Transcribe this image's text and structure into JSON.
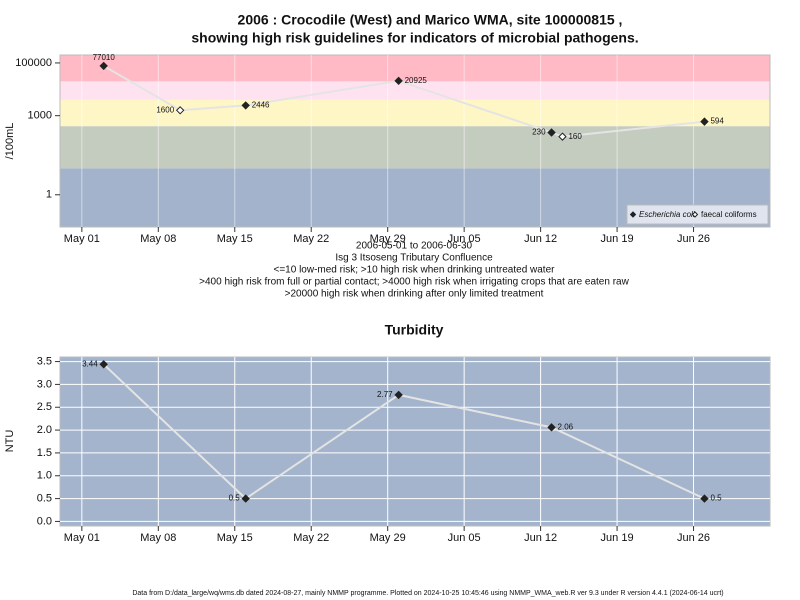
{
  "chart_data": [
    {
      "type": "line",
      "title": [
        "2006 : Crocodile (West) and Marico WMA, site 100000815 ,",
        "showing high risk guidelines for indicators of microbial pathogens."
      ],
      "ylabel": "/100mL",
      "log_y": true,
      "ylim": [
        0.06,
        200000
      ],
      "yticks": [
        1,
        1000,
        100000
      ],
      "xlim": [
        "2006-04-29",
        "2006-07-03"
      ],
      "xticks": [
        {
          "value": "2006-05-01",
          "label": "May 01"
        },
        {
          "value": "2006-05-08",
          "label": "May 08"
        },
        {
          "value": "2006-05-15",
          "label": "May 15"
        },
        {
          "value": "2006-05-22",
          "label": "May 22"
        },
        {
          "value": "2006-05-29",
          "label": "May 29"
        },
        {
          "value": "2006-06-05",
          "label": "Jun 05"
        },
        {
          "value": "2006-06-12",
          "label": "Jun 12"
        },
        {
          "value": "2006-06-19",
          "label": "Jun 19"
        },
        {
          "value": "2006-06-26",
          "label": "Jun 26"
        }
      ],
      "grid": true,
      "bands": {
        "thresholds": [
          10,
          400,
          4000,
          20000
        ],
        "colors": [
          "#a3b3cb",
          "#c4cbbf",
          "#fff6c6",
          "#ffe2f0",
          "#ffbac6"
        ]
      },
      "line_color": "#e4e4e4",
      "series": [
        {
          "name": "Escherichia coli",
          "marker": "filled",
          "color": "#222222",
          "x": [
            "2006-05-03",
            "2006-05-16",
            "2006-05-30",
            "2006-06-13",
            "2006-06-27"
          ],
          "values": [
            77010,
            2446,
            20925,
            230,
            594
          ]
        },
        {
          "name": "faecal coliforms",
          "marker": "open",
          "color": "#222222",
          "x": [
            "2006-05-10",
            "2006-06-14"
          ],
          "values": [
            1600,
            160
          ]
        }
      ],
      "legend": "bottom-right",
      "notes": [
        "2006-05-01 to 2006-06-30",
        "Isg 3 Itsoseng Tributary Confluence",
        "<=10 low-med risk; >10 high risk when drinking untreated water",
        ">400 high risk from full or partial contact; >4000 high risk when irrigating crops that are eaten raw",
        ">20000 high risk when drinking after only limited treatment"
      ]
    },
    {
      "type": "line",
      "title": "Turbidity",
      "ylabel": "NTU",
      "ylim": [
        -0.1,
        3.6
      ],
      "yticks": [
        {
          "value": 0,
          "label": "0.0"
        },
        0.5,
        {
          "value": 1,
          "label": "1.0"
        },
        1.5,
        {
          "value": 2,
          "label": "2.0"
        },
        2.5,
        {
          "value": 3,
          "label": "3.0"
        },
        3.5
      ],
      "xlim": [
        "2006-04-29",
        "2006-07-03"
      ],
      "xticks": [
        {
          "value": "2006-05-01",
          "label": "May 01"
        },
        {
          "value": "2006-05-08",
          "label": "May 08"
        },
        {
          "value": "2006-05-15",
          "label": "May 15"
        },
        {
          "value": "2006-05-22",
          "label": "May 22"
        },
        {
          "value": "2006-05-29",
          "label": "May 29"
        },
        {
          "value": "2006-06-05",
          "label": "Jun 05"
        },
        {
          "value": "2006-06-12",
          "label": "Jun 12"
        },
        {
          "value": "2006-06-19",
          "label": "Jun 19"
        },
        {
          "value": "2006-06-26",
          "label": "Jun 26"
        }
      ],
      "grid": true,
      "background": "#a3b4cc",
      "line_color": "#e4e4e4",
      "series": [
        {
          "name": "Turbidity",
          "marker": "filled",
          "color": "#222222",
          "x": [
            "2006-05-03",
            "2006-05-16",
            "2006-05-30",
            "2006-06-13",
            "2006-06-27"
          ],
          "values": [
            3.44,
            0.5,
            2.77,
            2.06,
            0.5
          ]
        }
      ]
    }
  ],
  "footer": "Data from D:/data_large/wq/wms.db dated 2024-08-27, mainly NMMP programme. Plotted on 2024-10-25 10:45:46 using NMMP_WMA_web.R ver 9.3 under R version 4.4.1 (2024-06-14 ucrt)"
}
